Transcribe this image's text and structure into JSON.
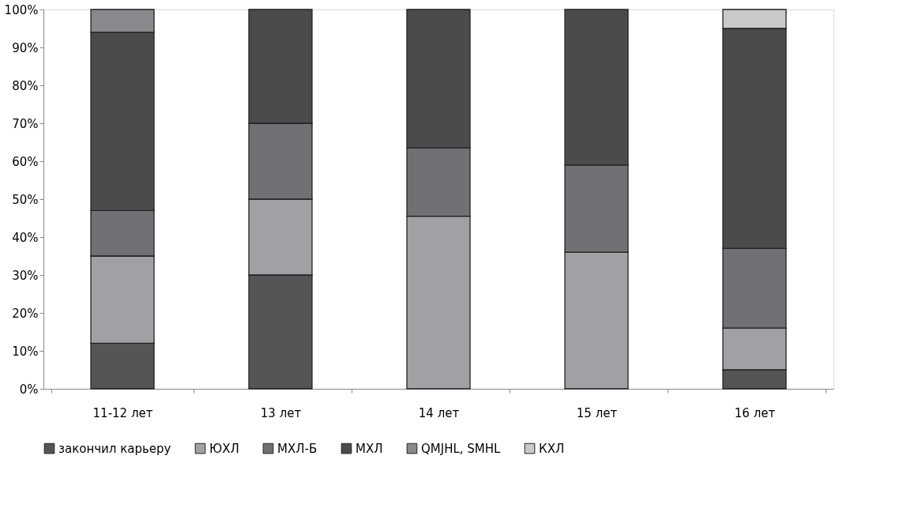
{
  "chart_data": {
    "type": "bar",
    "stacked": true,
    "categories": [
      "11-12 лет",
      "13 лет",
      "14 лет",
      "15 лет",
      "16 лет"
    ],
    "series": [
      {
        "name": "закончил карьеру",
        "color": "#555557",
        "values": [
          12,
          30,
          null,
          null,
          5
        ]
      },
      {
        "name": "ЮХЛ",
        "color": "#a0a1a5",
        "values": [
          23,
          20,
          45.5,
          36,
          11
        ]
      },
      {
        "name": "МХЛ-Б",
        "color": "#707174",
        "values": [
          12,
          20,
          18,
          23,
          21
        ]
      },
      {
        "name": "МХЛ",
        "color": "#4a4b4d",
        "values": [
          47,
          30,
          36.5,
          41,
          58
        ]
      },
      {
        "name": "QMJHL, SMHL",
        "color": "#88898c",
        "values": [
          6,
          null,
          null,
          null,
          null
        ]
      },
      {
        "name": "КХЛ",
        "color": "#c8c9cb",
        "values": [
          null,
          null,
          null,
          null,
          5
        ]
      }
    ],
    "ylim": [
      0,
      100
    ],
    "yticks": [
      {
        "value": 0,
        "label": "0%"
      },
      {
        "value": 10,
        "label": "10%"
      },
      {
        "value": 20,
        "label": "20%"
      },
      {
        "value": 30,
        "label": "30%"
      },
      {
        "value": 40,
        "label": "40%"
      },
      {
        "value": 50,
        "label": "50%"
      },
      {
        "value": 60,
        "label": "60%"
      },
      {
        "value": 70,
        "label": "70%"
      },
      {
        "value": 80,
        "label": "80%"
      },
      {
        "value": 90,
        "label": "90%"
      },
      {
        "value": 100,
        "label": "100%"
      }
    ],
    "grid": false,
    "legend": "bottom"
  }
}
